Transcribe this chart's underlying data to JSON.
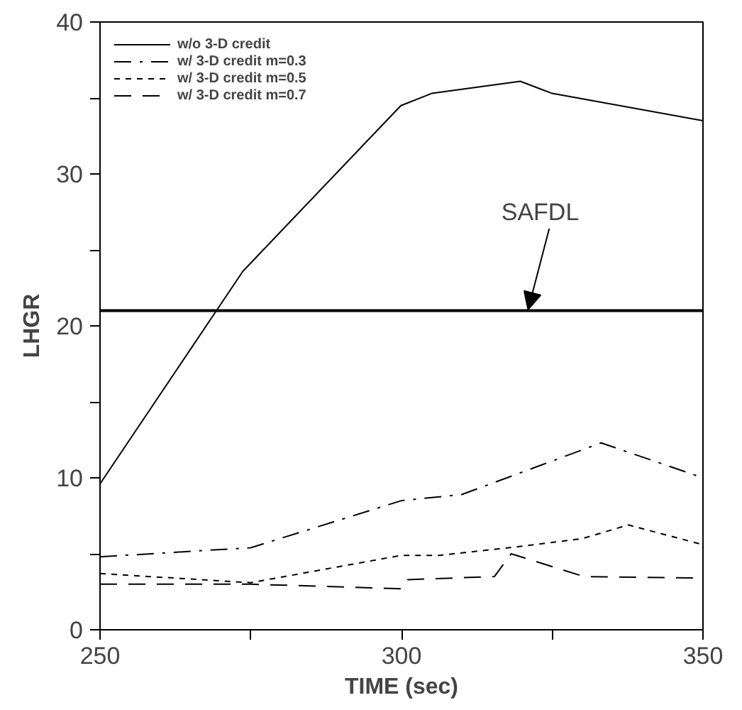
{
  "chart_data": {
    "type": "line",
    "xlabel": "TIME (sec)",
    "ylabel": "LHGR",
    "xlim": [
      250,
      350
    ],
    "ylim": [
      0,
      40
    ],
    "xticks": [
      250,
      {
        "value": 275,
        "label": null
      },
      300,
      {
        "value": 325,
        "label": null
      },
      350
    ],
    "yticks": [
      0,
      {
        "value": 5,
        "label": null
      },
      10,
      {
        "value": 15,
        "label": null
      },
      20,
      {
        "value": 25,
        "label": null
      },
      30,
      {
        "value": 35,
        "label": null
      },
      40
    ],
    "grid": false,
    "legend": "top left",
    "marker": "none",
    "series": [
      {
        "name": "w/o 3-D credit",
        "color": "#000000",
        "line_style": "solid",
        "x": [
          250,
          273.7,
          299.9,
          305,
          319.7,
          325,
          350
        ],
        "values": [
          9.6,
          23.6,
          34.5,
          35.3,
          36.1,
          35.3,
          33.5
        ]
      },
      {
        "name": "w/ 3-D credit m=0.3",
        "color": "#000000",
        "line_style": "dashdot",
        "x": [
          250,
          275,
          300,
          310,
          333.1,
          350
        ],
        "values": [
          4.8,
          5.4,
          8.5,
          8.9,
          12.3,
          10.0
        ]
      },
      {
        "name": "w/ 3-D credit m=0.5",
        "color": "#000000",
        "line_style": "dashed",
        "x": [
          250,
          275,
          300,
          306.4,
          320,
          330,
          337.6,
          350
        ],
        "values": [
          3.7,
          3.1,
          4.9,
          4.9,
          5.5,
          6.0,
          6.9,
          5.6
        ]
      },
      {
        "name": "w/ 3-D credit m=0.7",
        "color": "#000000",
        "line_style": "longdash",
        "x": [
          250,
          275,
          300,
          301,
          315.4,
          318.2,
          330.3,
          350
        ],
        "values": [
          3.0,
          3.0,
          2.7,
          3.3,
          3.5,
          5.0,
          3.5,
          3.4
        ]
      }
    ],
    "ref_lines": [
      {
        "axis": "y",
        "value": 21,
        "label": "SAFDL",
        "color": "#000000",
        "line_style": "solid"
      }
    ]
  }
}
